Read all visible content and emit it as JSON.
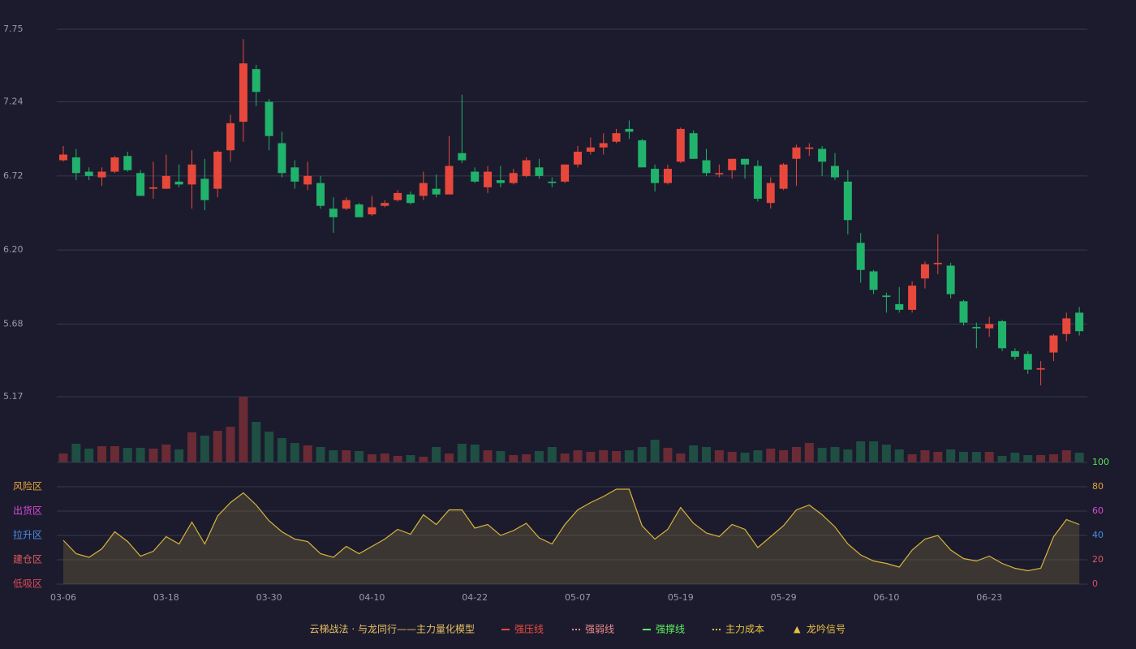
{
  "chart_data": [
    {
      "type": "candlestick",
      "up_color": "#e8483b",
      "down_color": "#21b26b",
      "ylim": [
        5.17,
        7.75
      ],
      "yticks": [
        5.17,
        5.68,
        {
          "value": 6.2,
          "label": "6.20"
        },
        6.72,
        7.24,
        7.75
      ],
      "grid": true,
      "open": [
        6.83,
        6.85,
        6.75,
        6.71,
        6.75,
        6.86,
        6.74,
        6.63,
        6.63,
        6.68,
        6.66,
        6.7,
        6.63,
        6.9,
        7.1,
        7.47,
        7.24,
        6.95,
        6.78,
        6.66,
        6.67,
        6.49,
        6.49,
        6.52,
        6.45,
        6.51,
        6.55,
        6.59,
        6.58,
        6.63,
        6.59,
        6.88,
        6.75,
        6.64,
        6.69,
        6.67,
        6.72,
        6.78,
        6.68,
        6.68,
        6.8,
        6.89,
        6.92,
        6.96,
        7.05,
        6.97,
        6.77,
        6.67,
        6.82,
        7.02,
        6.83,
        6.73,
        6.76,
        6.84,
        6.79,
        6.53,
        6.63,
        6.84,
        6.91,
        6.91,
        6.79,
        6.68,
        6.25,
        6.05,
        5.88,
        5.82,
        5.78,
        6.0,
        6.1,
        6.09,
        5.84,
        5.66,
        5.65,
        5.7,
        5.49,
        5.47,
        5.36,
        5.48,
        5.61,
        5.76
      ],
      "high": [
        6.93,
        6.91,
        6.78,
        6.78,
        6.86,
        6.89,
        6.76,
        6.82,
        6.87,
        6.8,
        6.9,
        6.84,
        6.9,
        7.15,
        7.68,
        7.5,
        7.26,
        7.03,
        6.83,
        6.82,
        6.72,
        6.57,
        6.57,
        6.53,
        6.58,
        6.55,
        6.62,
        6.61,
        6.75,
        6.73,
        7.0,
        7.29,
        6.78,
        6.79,
        6.79,
        6.77,
        6.85,
        6.84,
        6.71,
        6.8,
        6.93,
        6.99,
        7.02,
        7.05,
        7.11,
        6.98,
        6.8,
        6.8,
        7.06,
        7.04,
        6.91,
        6.8,
        6.84,
        6.84,
        6.83,
        6.71,
        6.81,
        6.94,
        6.95,
        6.93,
        6.88,
        6.76,
        6.32,
        6.06,
        5.9,
        5.94,
        5.98,
        6.12,
        6.31,
        6.11,
        5.85,
        5.69,
        5.73,
        5.71,
        5.51,
        5.49,
        5.42,
        5.61,
        5.76,
        5.8
      ],
      "low": [
        6.82,
        6.69,
        6.69,
        6.65,
        6.74,
        6.75,
        6.58,
        6.56,
        6.63,
        6.64,
        6.49,
        6.48,
        6.57,
        6.82,
        6.96,
        7.21,
        6.9,
        6.71,
        6.63,
        6.62,
        6.49,
        6.32,
        6.48,
        6.43,
        6.44,
        6.5,
        6.54,
        6.52,
        6.55,
        6.57,
        6.59,
        6.81,
        6.67,
        6.6,
        6.64,
        6.66,
        6.71,
        6.7,
        6.64,
        6.67,
        6.78,
        6.87,
        6.87,
        6.95,
        6.98,
        6.78,
        6.61,
        6.66,
        6.81,
        6.84,
        6.72,
        6.71,
        6.7,
        6.7,
        6.54,
        6.49,
        6.62,
        6.65,
        6.86,
        6.72,
        6.69,
        6.31,
        5.97,
        5.89,
        5.76,
        5.76,
        5.76,
        5.93,
        6.03,
        5.86,
        5.67,
        5.51,
        5.59,
        5.49,
        5.43,
        5.33,
        5.25,
        5.42,
        5.56,
        5.6
      ],
      "close": [
        6.87,
        6.74,
        6.72,
        6.75,
        6.85,
        6.76,
        6.58,
        6.64,
        6.72,
        6.66,
        6.8,
        6.55,
        6.89,
        7.09,
        7.51,
        7.31,
        7.0,
        6.74,
        6.68,
        6.72,
        6.51,
        6.43,
        6.55,
        6.43,
        6.5,
        6.53,
        6.6,
        6.53,
        6.67,
        6.59,
        6.79,
        6.83,
        6.68,
        6.75,
        6.67,
        6.74,
        6.83,
        6.72,
        6.67,
        6.8,
        6.89,
        6.92,
        6.95,
        7.02,
        7.03,
        6.78,
        6.67,
        6.77,
        7.05,
        6.84,
        6.74,
        6.74,
        6.84,
        6.8,
        6.56,
        6.67,
        6.8,
        6.92,
        6.92,
        6.82,
        6.71,
        6.41,
        6.06,
        5.92,
        5.87,
        5.78,
        5.95,
        6.1,
        6.11,
        5.89,
        5.69,
        5.65,
        5.68,
        5.51,
        5.45,
        5.36,
        5.37,
        5.6,
        5.72,
        5.63
      ]
    },
    {
      "type": "bar",
      "up_color": "#6a2b34",
      "down_color": "#1f4e43",
      "ylim": [
        0,
        81
      ],
      "values": [
        11,
        23,
        17,
        20,
        20,
        18,
        18,
        17,
        22,
        16,
        37,
        33,
        39,
        44,
        81,
        50,
        38,
        30,
        24,
        21,
        19,
        15,
        15,
        14,
        10,
        11,
        8,
        9,
        7,
        19,
        11,
        23,
        22,
        15,
        14,
        9,
        10,
        14,
        19,
        11,
        15,
        13,
        15,
        14,
        15,
        19,
        28,
        18,
        11,
        21,
        19,
        15,
        13,
        12,
        15,
        17,
        15,
        19,
        24,
        18,
        19,
        16,
        26,
        26,
        22,
        16,
        10,
        15,
        13,
        16,
        13,
        13,
        13,
        8,
        12,
        9,
        9,
        10,
        15,
        12
      ]
    },
    {
      "type": "area",
      "color": "#d8b43a",
      "ylim": [
        0,
        100
      ],
      "yticks": [
        0,
        20,
        40,
        60,
        80,
        100
      ],
      "ytick_colors": [
        "#e04a5a",
        "#e05a5a",
        "#4a8ee8",
        "#d94ad9",
        "#e8a33a",
        "#5de05d"
      ],
      "grid": true,
      "zones": [
        {
          "value": 80,
          "label": "风险区",
          "color": "#e8a33a"
        },
        {
          "value": 60,
          "label": "出货区",
          "color": "#d94ad9"
        },
        {
          "value": 40,
          "label": "拉升区",
          "color": "#4a8ee8"
        },
        {
          "value": 20,
          "label": "建仓区",
          "color": "#e05a5a"
        },
        {
          "value": 0,
          "label": "低吸区",
          "color": "#e04a5a"
        }
      ],
      "categories": [
        "03-06",
        null,
        null,
        null,
        null,
        null,
        null,
        null,
        "03-18",
        null,
        null,
        null,
        null,
        null,
        null,
        null,
        "03-30",
        null,
        null,
        null,
        null,
        null,
        null,
        null,
        "04-10",
        null,
        null,
        null,
        null,
        null,
        null,
        null,
        "04-22",
        null,
        null,
        null,
        null,
        null,
        null,
        null,
        "05-07",
        null,
        null,
        null,
        null,
        null,
        null,
        null,
        "05-19",
        null,
        null,
        null,
        null,
        null,
        null,
        null,
        "05-29",
        null,
        null,
        null,
        null,
        null,
        null,
        null,
        "06-10",
        null,
        null,
        null,
        null,
        null,
        null,
        null,
        "06-23",
        null,
        null,
        null,
        null,
        null,
        null,
        null
      ],
      "values": [
        36,
        25,
        22,
        29,
        43,
        35,
        23,
        27,
        39,
        33,
        51,
        33,
        56,
        67,
        75,
        65,
        52,
        43,
        37,
        35,
        25,
        22,
        31,
        25,
        31,
        37,
        45,
        41,
        57,
        49,
        61,
        61,
        46,
        49,
        40,
        44,
        50,
        38,
        33,
        49,
        61,
        67,
        72,
        78,
        78,
        48,
        37,
        45,
        63,
        50,
        42,
        39,
        49,
        45,
        30,
        39,
        48,
        61,
        65,
        57,
        47,
        33,
        24,
        19,
        17,
        14,
        28,
        37,
        40,
        28,
        21,
        19,
        23,
        17,
        13,
        11,
        13,
        39,
        53,
        49
      ]
    }
  ],
  "legend": {
    "title": "云梯战法 · 与龙同行——主力量化模型",
    "title_color": "#e8c060",
    "items": [
      {
        "label": "强压线",
        "color": "#f04a3a",
        "style": "solid"
      },
      {
        "label": "强弱线",
        "color": "#f08a8a",
        "style": "dashed"
      },
      {
        "label": "强撑线",
        "color": "#5ef05e",
        "style": "solid"
      },
      {
        "label": "主力成本",
        "color": "#e8c040",
        "style": "dashed"
      },
      {
        "label": "龙吟信号",
        "color": "#e8c040",
        "symbol": "▲"
      }
    ]
  }
}
